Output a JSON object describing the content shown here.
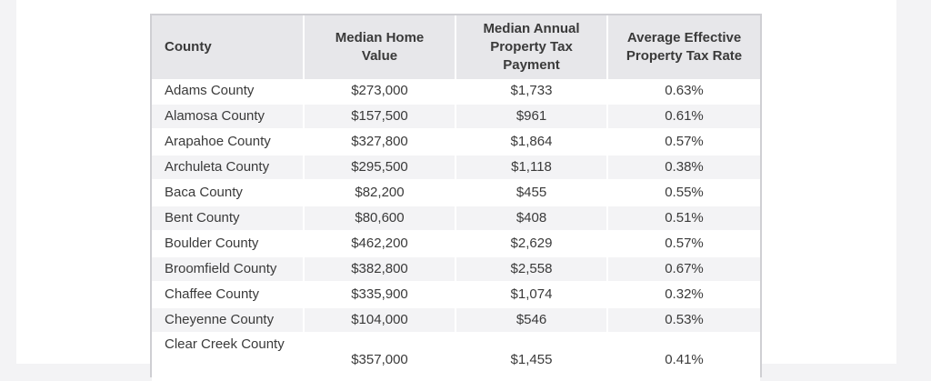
{
  "table": {
    "headers": [
      "County",
      "Median Home Value",
      "Median Annual Property Tax Payment",
      "Average Effective Property Tax Rate"
    ],
    "rows": [
      [
        "Adams County",
        "$273,000",
        "$1,733",
        "0.63%"
      ],
      [
        "Alamosa County",
        "$157,500",
        "$961",
        "0.61%"
      ],
      [
        "Arapahoe County",
        "$327,800",
        "$1,864",
        "0.57%"
      ],
      [
        "Archuleta County",
        "$295,500",
        "$1,118",
        "0.38%"
      ],
      [
        "Baca County",
        "$82,200",
        "$455",
        "0.55%"
      ],
      [
        "Bent County",
        "$80,600",
        "$408",
        "0.51%"
      ],
      [
        "Boulder County",
        "$462,200",
        "$2,629",
        "0.57%"
      ],
      [
        "Broomfield County",
        "$382,800",
        "$2,558",
        "0.67%"
      ],
      [
        "Chaffee County",
        "$335,900",
        "$1,074",
        "0.32%"
      ],
      [
        "Cheyenne County",
        "$104,000",
        "$546",
        "0.53%"
      ],
      [
        "Clear Creek County",
        "$357,000",
        "$1,455",
        "0.41%"
      ]
    ]
  }
}
